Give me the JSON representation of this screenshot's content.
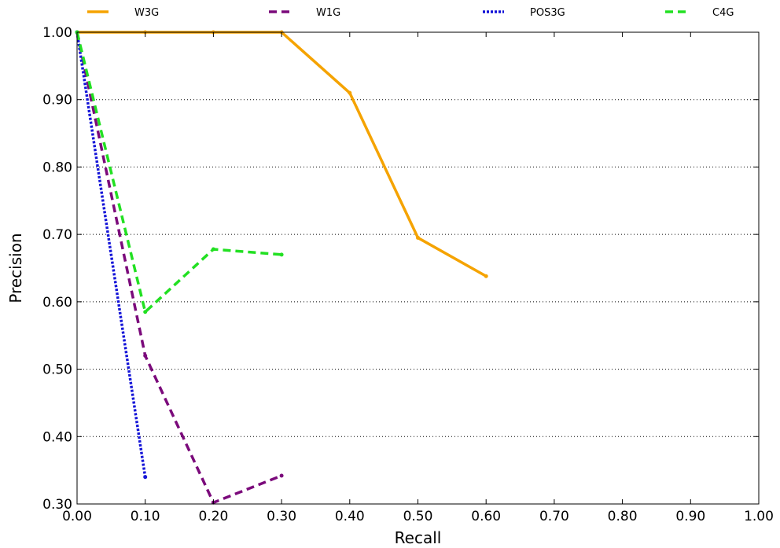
{
  "chart_data": {
    "type": "line",
    "xlabel": "Recall",
    "ylabel": "Precision",
    "xlim": [
      0.0,
      1.0
    ],
    "ylim": [
      0.3,
      1.0
    ],
    "xticks": [
      "0.00",
      "0.10",
      "0.20",
      "0.30",
      "0.40",
      "0.50",
      "0.60",
      "0.70",
      "0.80",
      "0.90",
      "1.00"
    ],
    "yticks": [
      "0.30",
      "0.40",
      "0.50",
      "0.60",
      "0.70",
      "0.80",
      "0.90",
      "1.00"
    ],
    "grid": "horizontal-dotted",
    "legend_position": "top",
    "series": [
      {
        "name": "W3G",
        "color": "#f5a300",
        "style": "solid",
        "x": [
          0.0,
          0.1,
          0.2,
          0.3,
          0.4,
          0.5,
          0.6
        ],
        "y": [
          1.0,
          1.0,
          1.0,
          1.0,
          0.91,
          0.695,
          0.638
        ]
      },
      {
        "name": "W1G",
        "color": "#7b0a7b",
        "style": "dashed",
        "x": [
          0.0,
          0.1,
          0.2,
          0.3
        ],
        "y": [
          1.0,
          0.52,
          0.302,
          0.342
        ]
      },
      {
        "name": "POS3G",
        "color": "#1515d8",
        "style": "dotted",
        "x": [
          0.0,
          0.1
        ],
        "y": [
          1.0,
          0.34
        ]
      },
      {
        "name": "C4G",
        "color": "#22e022",
        "style": "dashed",
        "x": [
          0.0,
          0.1,
          0.2,
          0.3
        ],
        "y": [
          1.0,
          0.585,
          0.678,
          0.67
        ]
      }
    ]
  }
}
